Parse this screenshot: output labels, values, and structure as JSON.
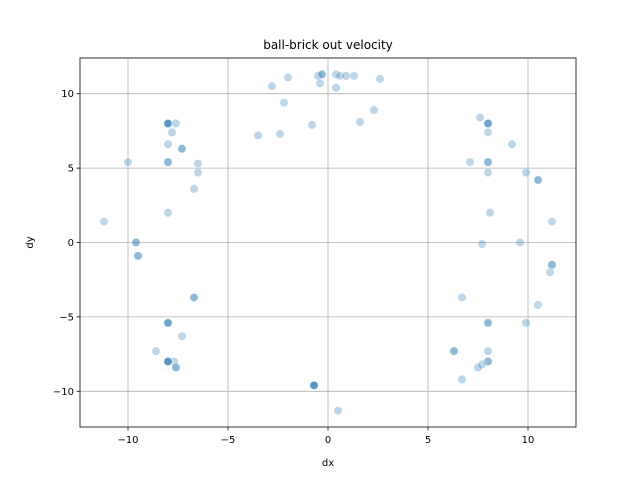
{
  "chart_data": {
    "type": "scatter",
    "title": "ball-brick out velocity",
    "xlabel": "dx",
    "ylabel": "dy",
    "xlim": [
      -12.4,
      12.4
    ],
    "ylim": [
      -12.4,
      12.4
    ],
    "xticks": [
      -10,
      -5,
      0,
      5,
      10
    ],
    "yticks": [
      -10,
      -5,
      0,
      5,
      10
    ],
    "grid": true,
    "color": "#1f77b4",
    "point_alpha": 0.3,
    "points": [
      {
        "x": -8.0,
        "y": 8.0
      },
      {
        "x": -8.0,
        "y": 8.0
      },
      {
        "x": -8.0,
        "y": 8.0
      },
      {
        "x": -8.0,
        "y": 8.0
      },
      {
        "x": -7.6,
        "y": 8.0
      },
      {
        "x": -7.8,
        "y": 7.4
      },
      {
        "x": -8.0,
        "y": 6.6
      },
      {
        "x": -7.3,
        "y": 6.3
      },
      {
        "x": -7.3,
        "y": 6.3
      },
      {
        "x": -8.0,
        "y": 5.4
      },
      {
        "x": -8.0,
        "y": 5.4
      },
      {
        "x": -10.0,
        "y": 5.4
      },
      {
        "x": -6.5,
        "y": 5.3
      },
      {
        "x": -6.5,
        "y": 4.7
      },
      {
        "x": -6.7,
        "y": 3.6
      },
      {
        "x": -8.0,
        "y": 2.0
      },
      {
        "x": -11.2,
        "y": 1.4
      },
      {
        "x": -9.6,
        "y": 0.0
      },
      {
        "x": -9.6,
        "y": 0.0
      },
      {
        "x": -9.5,
        "y": -0.9
      },
      {
        "x": -9.5,
        "y": -0.9
      },
      {
        "x": -6.7,
        "y": -3.7
      },
      {
        "x": -6.7,
        "y": -3.7
      },
      {
        "x": -8.0,
        "y": -5.4
      },
      {
        "x": -8.0,
        "y": -5.4
      },
      {
        "x": -8.0,
        "y": -5.4
      },
      {
        "x": -7.3,
        "y": -6.3
      },
      {
        "x": -8.6,
        "y": -7.3
      },
      {
        "x": -7.7,
        "y": -8.0
      },
      {
        "x": -8.0,
        "y": -8.0
      },
      {
        "x": -8.0,
        "y": -8.0
      },
      {
        "x": -8.0,
        "y": -8.0
      },
      {
        "x": -8.0,
        "y": -8.0
      },
      {
        "x": -7.6,
        "y": -8.4
      },
      {
        "x": -7.6,
        "y": -8.4
      },
      {
        "x": -2.8,
        "y": 10.5
      },
      {
        "x": -2.0,
        "y": 11.1
      },
      {
        "x": -2.2,
        "y": 9.4
      },
      {
        "x": -3.5,
        "y": 7.2
      },
      {
        "x": -2.4,
        "y": 7.3
      },
      {
        "x": -0.8,
        "y": 7.9
      },
      {
        "x": -0.5,
        "y": 11.2
      },
      {
        "x": -0.3,
        "y": 11.3
      },
      {
        "x": -0.3,
        "y": 11.3
      },
      {
        "x": -0.4,
        "y": 10.7
      },
      {
        "x": 0.4,
        "y": 11.3
      },
      {
        "x": 0.6,
        "y": 11.2
      },
      {
        "x": 0.9,
        "y": 11.2
      },
      {
        "x": 1.3,
        "y": 11.2
      },
      {
        "x": 0.4,
        "y": 10.4
      },
      {
        "x": 2.6,
        "y": 11.0
      },
      {
        "x": 2.3,
        "y": 8.9
      },
      {
        "x": 1.6,
        "y": 8.1
      },
      {
        "x": -0.7,
        "y": -9.6
      },
      {
        "x": -0.7,
        "y": -9.6
      },
      {
        "x": -0.7,
        "y": -9.6
      },
      {
        "x": -0.7,
        "y": -9.6
      },
      {
        "x": 0.5,
        "y": -11.3
      },
      {
        "x": 8.0,
        "y": 8.0
      },
      {
        "x": 8.0,
        "y": 8.0
      },
      {
        "x": 8.0,
        "y": 8.0
      },
      {
        "x": 7.6,
        "y": 8.4
      },
      {
        "x": 8.0,
        "y": 7.4
      },
      {
        "x": 9.2,
        "y": 6.6
      },
      {
        "x": 8.0,
        "y": 5.4
      },
      {
        "x": 8.0,
        "y": 5.4
      },
      {
        "x": 7.1,
        "y": 5.4
      },
      {
        "x": 8.0,
        "y": 4.7
      },
      {
        "x": 9.9,
        "y": 4.7
      },
      {
        "x": 10.5,
        "y": 4.2
      },
      {
        "x": 10.5,
        "y": 4.2
      },
      {
        "x": 8.1,
        "y": 2.0
      },
      {
        "x": 11.2,
        "y": 1.4
      },
      {
        "x": 9.6,
        "y": 0.0
      },
      {
        "x": 7.7,
        "y": -0.1
      },
      {
        "x": 11.2,
        "y": -1.5
      },
      {
        "x": 11.2,
        "y": -1.5
      },
      {
        "x": 11.1,
        "y": -2.0
      },
      {
        "x": 6.7,
        "y": -3.7
      },
      {
        "x": 10.5,
        "y": -4.2
      },
      {
        "x": 8.0,
        "y": -5.4
      },
      {
        "x": 8.0,
        "y": -5.4
      },
      {
        "x": 9.9,
        "y": -5.4
      },
      {
        "x": 6.3,
        "y": -7.3
      },
      {
        "x": 6.3,
        "y": -7.3
      },
      {
        "x": 8.0,
        "y": -7.3
      },
      {
        "x": 8.0,
        "y": -8.0
      },
      {
        "x": 8.0,
        "y": -8.0
      },
      {
        "x": 7.7,
        "y": -8.2
      },
      {
        "x": 7.5,
        "y": -8.4
      },
      {
        "x": 6.7,
        "y": -9.2
      }
    ]
  }
}
